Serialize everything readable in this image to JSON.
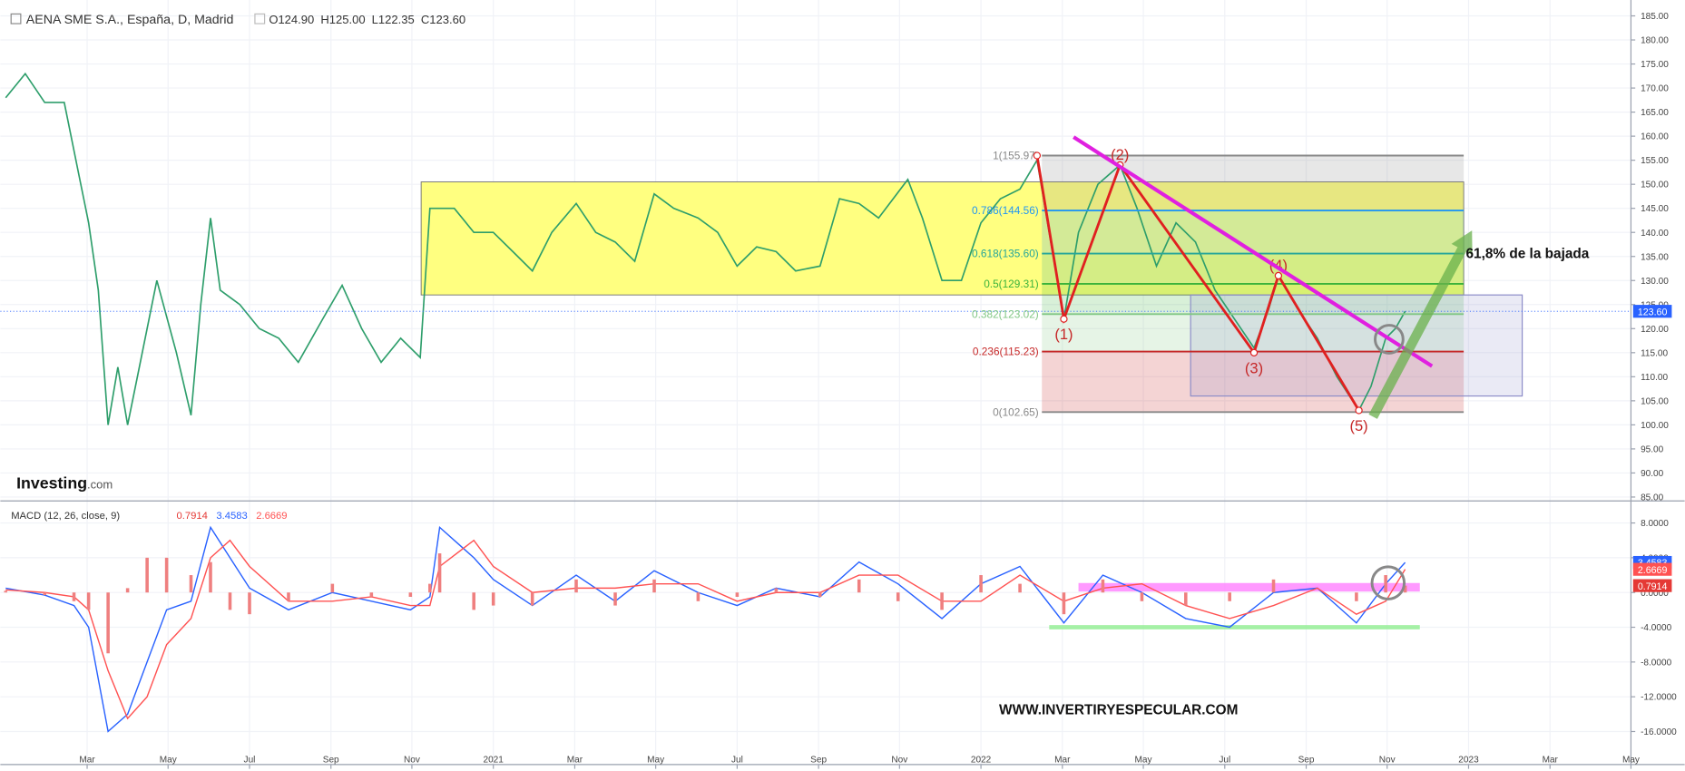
{
  "header": {
    "title": "AENA SME S.A., España, D, Madrid",
    "ohlc": [
      "O124.90",
      "H125.00",
      "L122.35",
      "C123.60"
    ],
    "price_tag": "123.60",
    "logo": "Investing",
    "logo_suffix": ".com",
    "watermark": "WWW.INVERTIRYESPECULAR.COM"
  },
  "chart_data": [
    {
      "type": "line",
      "color": "#2e9e6b",
      "xlim": [
        2020,
        2023.333
      ],
      "ylim": [
        84.3,
        188.3
      ],
      "grid": true,
      "yticks": [
        {
          "value": 85,
          "label": "85.00"
        },
        {
          "value": 90,
          "label": "90.00"
        },
        {
          "value": 95,
          "label": "95.00"
        },
        {
          "value": 100,
          "label": "100.00"
        },
        {
          "value": 105,
          "label": "105.00"
        },
        {
          "value": 110,
          "label": "110.00"
        },
        {
          "value": 115,
          "label": "115.00"
        },
        {
          "value": 120,
          "label": "120.00"
        },
        {
          "value": 125,
          "label": "125.00"
        },
        {
          "value": 130,
          "label": "130.00"
        },
        {
          "value": 135,
          "label": "135.00"
        },
        {
          "value": 140,
          "label": "140.00"
        },
        {
          "value": 145,
          "label": "145.00"
        },
        {
          "value": 150,
          "label": "150.00"
        },
        {
          "value": 155,
          "label": "155.00"
        },
        {
          "value": 160,
          "label": "160.00"
        },
        {
          "value": 165,
          "label": "165.00"
        },
        {
          "value": 170,
          "label": "170.00"
        },
        {
          "value": 175,
          "label": "175.00"
        },
        {
          "value": 180,
          "label": "180.00"
        },
        {
          "value": 185,
          "label": "185.00"
        }
      ],
      "x": [
        2020.0,
        2020.04,
        2020.08,
        2020.12,
        2020.15,
        2020.17,
        2020.19,
        2020.21,
        2020.23,
        2020.25,
        2020.27,
        2020.31,
        2020.35,
        2020.38,
        2020.4,
        2020.42,
        2020.44,
        2020.48,
        2020.52,
        2020.56,
        2020.6,
        2020.65,
        2020.69,
        2020.73,
        2020.77,
        2020.81,
        2020.85,
        2020.87,
        2020.92,
        2020.96,
        2021.0,
        2021.04,
        2021.08,
        2021.12,
        2021.17,
        2021.21,
        2021.25,
        2021.29,
        2021.33,
        2021.37,
        2021.42,
        2021.46,
        2021.5,
        2021.54,
        2021.58,
        2021.62,
        2021.67,
        2021.71,
        2021.75,
        2021.79,
        2021.85,
        2021.88,
        2021.92,
        2021.96,
        2022.0,
        2022.04,
        2022.08,
        2022.115,
        2022.14,
        2022.17,
        2022.2,
        2022.24,
        2022.285,
        2022.32,
        2022.36,
        2022.4,
        2022.44,
        2022.48,
        2022.52,
        2022.56,
        2022.59,
        2022.61,
        2022.65,
        2022.69,
        2022.73,
        2022.775,
        2022.8,
        2022.83,
        2022.85,
        2022.87
      ],
      "values": [
        168,
        173,
        167,
        167,
        152,
        142,
        128,
        100,
        112,
        100,
        110,
        130,
        115,
        102,
        125,
        143,
        128,
        125,
        120,
        118,
        113,
        122,
        129,
        120,
        113,
        118,
        114,
        145,
        145,
        140,
        140,
        136,
        132,
        140,
        146,
        140,
        138,
        134,
        148,
        145,
        143,
        140,
        133,
        137,
        136,
        132,
        133,
        147,
        146,
        143,
        151,
        143,
        130,
        130,
        142,
        147,
        149,
        155,
        140,
        122,
        140,
        150,
        154,
        145,
        133,
        142,
        138,
        128,
        122,
        116,
        124,
        131,
        124,
        118,
        110,
        103,
        108,
        118,
        120,
        123.6
      ],
      "range_box": {
        "x": [
          2020.852,
          2022.99
        ],
        "y": [
          127,
          150.5
        ],
        "color": "#ffff80"
      },
      "highlight_box": {
        "x": [
          2022.43,
          2023.11
        ],
        "y": [
          106,
          127
        ],
        "color": "#8c8cc8"
      },
      "fib_x": [
        2022.125,
        2022.99
      ],
      "fib_levels": [
        {
          "value": 155.97,
          "label": "1(155.97)",
          "color": "#888888"
        },
        {
          "value": 144.56,
          "label": "0.786(144.56)",
          "color": "#2196f3"
        },
        {
          "value": 135.6,
          "label": "0.618(135.60)",
          "color": "#26a69a"
        },
        {
          "value": 129.31,
          "label": "0.5(129.31)",
          "color": "#3bb33b"
        },
        {
          "value": 123.02,
          "label": "0.382(123.02)",
          "color": "#81c784"
        },
        {
          "value": 115.23,
          "label": "0.236(115.23)",
          "color": "#c62828"
        },
        {
          "value": 102.65,
          "label": "0(102.65)",
          "color": "#888888"
        }
      ],
      "wave_path": {
        "x": [
          2022.115,
          2022.17,
          2022.285,
          2022.56,
          2022.61,
          2022.775
        ],
        "y": [
          155.97,
          122,
          154,
          115,
          131,
          103
        ],
        "color": "#e02020"
      },
      "wave_labels": [
        "(1)",
        "(2)",
        "(3)",
        "(4)",
        "(5)"
      ],
      "trendline": {
        "x": [
          2022.19,
          2022.925
        ],
        "y": [
          159.8,
          112.2
        ],
        "color": "#e020e0"
      },
      "arrow": {
        "x": [
          2022.804,
          2023.007
        ],
        "y": [
          101.7,
          140.4
        ],
        "color": "#6ab04c"
      },
      "circle": {
        "x": 2022.837,
        "y": 117.8
      },
      "annotation": {
        "text": "61,8% de la bajada",
        "x": 2022.99,
        "y": 135.6
      }
    },
    {
      "type": "macd",
      "title": "MACD (12, 26, close, 9)",
      "xlim": [
        2020,
        2023.333
      ],
      "ylim": [
        -19.8,
        10.35
      ],
      "yticks": [
        {
          "value": 8,
          "label": "8.0000"
        },
        {
          "value": 4,
          "label": "4.0000"
        },
        {
          "value": 0,
          "label": "0.0000"
        },
        {
          "value": -4,
          "label": "-4.0000"
        },
        {
          "value": -8,
          "label": "-8.0000"
        },
        {
          "value": -12,
          "label": "-12.0000"
        },
        {
          "value": -16,
          "label": "-16.0000"
        }
      ],
      "xticks": [
        {
          "value": 2020.167,
          "label": "Mar"
        },
        {
          "value": 2020.333,
          "label": "May"
        },
        {
          "value": 2020.5,
          "label": "Jul"
        },
        {
          "value": 2020.667,
          "label": "Sep"
        },
        {
          "value": 2020.833,
          "label": "Nov"
        },
        2021,
        {
          "value": 2021.167,
          "label": "Mar"
        },
        {
          "value": 2021.333,
          "label": "May"
        },
        {
          "value": 2021.5,
          "label": "Jul"
        },
        {
          "value": 2021.667,
          "label": "Sep"
        },
        {
          "value": 2021.833,
          "label": "Nov"
        },
        2022,
        {
          "value": 2022.167,
          "label": "Mar"
        },
        {
          "value": 2022.333,
          "label": "May"
        },
        {
          "value": 2022.5,
          "label": "Jul"
        },
        {
          "value": 2022.667,
          "label": "Sep"
        },
        {
          "value": 2022.833,
          "label": "Nov"
        },
        2023,
        {
          "value": 2023.167,
          "label": "Mar"
        },
        {
          "value": 2023.333,
          "label": "May"
        }
      ],
      "x": [
        2020.0,
        2020.08,
        2020.14,
        2020.17,
        2020.21,
        2020.25,
        2020.29,
        2020.33,
        2020.38,
        2020.42,
        2020.46,
        2020.5,
        2020.58,
        2020.67,
        2020.75,
        2020.83,
        2020.87,
        2020.89,
        2020.96,
        2021.0,
        2021.08,
        2021.17,
        2021.25,
        2021.33,
        2021.42,
        2021.5,
        2021.58,
        2021.67,
        2021.75,
        2021.83,
        2021.92,
        2022.0,
        2022.08,
        2022.17,
        2022.25,
        2022.33,
        2022.42,
        2022.51,
        2022.6,
        2022.69,
        2022.77,
        2022.83,
        2022.87
      ],
      "series": [
        {
          "kind": "line",
          "color": "#2962ff",
          "values": [
            0.5,
            -0.3,
            -1.5,
            -4,
            -16,
            -14,
            -8,
            -2,
            -1,
            7.5,
            4,
            0.5,
            -2,
            0,
            -1,
            -2,
            -0.5,
            7.5,
            4,
            1.5,
            -1.5,
            2,
            -1,
            2.5,
            0,
            -1.5,
            0.5,
            -0.5,
            3.5,
            1,
            -3,
            1,
            3,
            -3.5,
            2,
            0,
            -3,
            -4,
            0,
            0.5,
            -3.5,
            1,
            3.4583
          ]
        },
        {
          "kind": "line",
          "color": "#ff5252",
          "values": [
            0.3,
            0,
            -0.5,
            -2,
            -9,
            -14.5,
            -12,
            -6,
            -3,
            4,
            6,
            3,
            -1,
            -1,
            -0.5,
            -1.5,
            -1.5,
            3,
            6,
            3,
            0,
            0.5,
            0.5,
            1,
            1,
            -1,
            0,
            0,
            2,
            2,
            -1,
            -1,
            2,
            -1,
            0.5,
            1,
            -1.5,
            -3,
            -1.5,
            0.5,
            -2.5,
            -1,
            2.6669
          ]
        },
        {
          "kind": "histogram",
          "color": "#ef7f7f",
          "values": [
            0.2,
            -0.3,
            -1,
            -2,
            -7,
            0.5,
            4,
            4,
            2,
            3.5,
            -2,
            -2.5,
            -1,
            1,
            -0.5,
            -0.5,
            1,
            4.5,
            -2,
            -1.5,
            -1.5,
            1.5,
            -1.5,
            1.5,
            -1,
            -0.5,
            0.5,
            -0.5,
            1.5,
            -1,
            -2,
            2,
            1,
            -2.5,
            1.5,
            -1,
            -1.5,
            -1,
            1.5,
            0,
            -1,
            2,
            0.7914
          ]
        }
      ],
      "bands": [
        {
          "x": [
            2022.2,
            2022.9
          ],
          "y": 0.6,
          "color": "#ff80ff"
        },
        {
          "x": [
            2022.14,
            2022.9
          ],
          "y": -4,
          "color": "#90ee90"
        }
      ],
      "circle": {
        "x": 2022.835,
        "y": 1.1
      }
    }
  ]
}
